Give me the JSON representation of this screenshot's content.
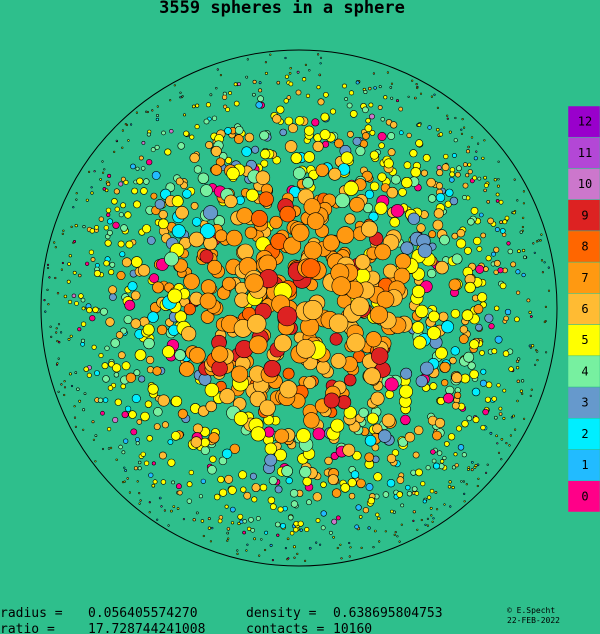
{
  "title": "3559 spheres in a sphere",
  "legend": [
    {
      "label": "12",
      "color": "#9900cc"
    },
    {
      "label": "11",
      "color": "#b347d6"
    },
    {
      "label": "10",
      "color": "#cc77cc"
    },
    {
      "label": "9",
      "color": "#dd2222"
    },
    {
      "label": "8",
      "color": "#ff6600"
    },
    {
      "label": "7",
      "color": "#ff9911"
    },
    {
      "label": "6",
      "color": "#ffbb33"
    },
    {
      "label": "5",
      "color": "#ffff00"
    },
    {
      "label": "4",
      "color": "#77f0a0"
    },
    {
      "label": "3",
      "color": "#6699cc"
    },
    {
      "label": "2",
      "color": "#00eeff"
    },
    {
      "label": "1",
      "color": "#22bbff"
    },
    {
      "label": "0",
      "color": "#ff0088"
    }
  ],
  "stats": [
    [
      {
        "label": "radius =",
        "value": "0.056405574270"
      },
      {
        "label": "density  =",
        "value": "0.638695804753"
      }
    ],
    [
      {
        "label": "ratio  =",
        "value": "17.728744241008"
      },
      {
        "label": "contacts =",
        "value": "10160"
      }
    ]
  ],
  "credit": {
    "author": "© E.Specht",
    "date": "22-FEB-2022"
  }
}
